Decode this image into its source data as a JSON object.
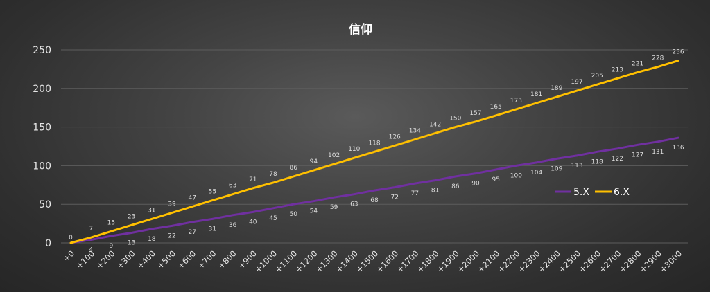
{
  "chart_data": {
    "type": "line",
    "title": "信仰",
    "xlabel": "",
    "ylabel": "",
    "ylim": [
      0,
      250
    ],
    "yticks": [
      0,
      50,
      100,
      150,
      200,
      250
    ],
    "grid": true,
    "legend_position": "right",
    "categories": [
      "+0",
      "+100",
      "+200",
      "+300",
      "+400",
      "+500",
      "+600",
      "+700",
      "+800",
      "+900",
      "+1000",
      "+1100",
      "+1200",
      "+1300",
      "+1400",
      "+1500",
      "+1600",
      "+1700",
      "+1800",
      "+1900",
      "+2000",
      "+2100",
      "+2200",
      "+2300",
      "+2400",
      "+2500",
      "+2600",
      "+2700",
      "+2800",
      "+2900",
      "+3000"
    ],
    "series": [
      {
        "name": "5.X",
        "color": "#7030a0",
        "values": [
          0,
          4,
          9,
          13,
          18,
          22,
          27,
          31,
          36,
          40,
          45,
          50,
          54,
          59,
          63,
          68,
          72,
          77,
          81,
          86,
          90,
          95,
          100,
          104,
          109,
          113,
          118,
          122,
          127,
          131,
          136
        ]
      },
      {
        "name": "6.X",
        "color": "#ffc000",
        "values": [
          0,
          7,
          15,
          23,
          31,
          39,
          47,
          55,
          63,
          71,
          78,
          86,
          94,
          102,
          110,
          118,
          126,
          134,
          142,
          150,
          157,
          165,
          173,
          181,
          189,
          197,
          205,
          213,
          221,
          228,
          236
        ]
      }
    ]
  }
}
